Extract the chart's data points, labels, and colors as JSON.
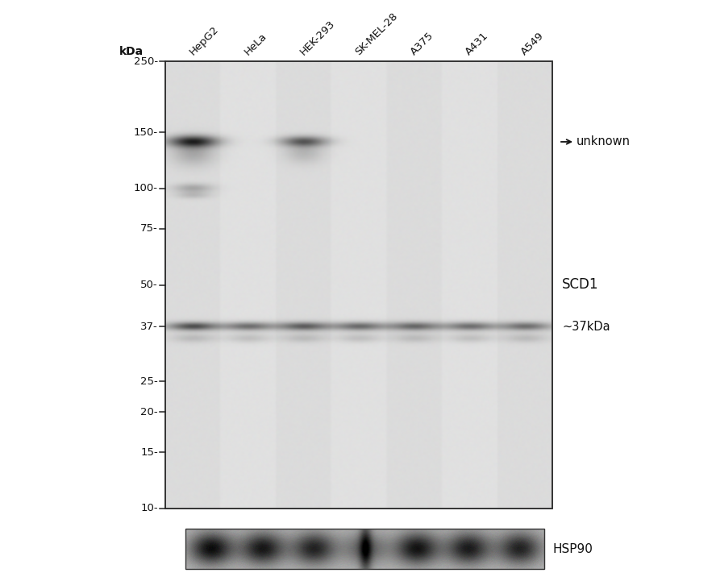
{
  "background_color": "#ffffff",
  "fig_width": 8.88,
  "fig_height": 7.11,
  "lanes": [
    "HepG2",
    "HeLa",
    "HEK-293",
    "SK-MEL-28",
    "A375",
    "A431",
    "A549"
  ],
  "kda_label": "kDa",
  "mw_markers": [
    250,
    150,
    100,
    75,
    50,
    37,
    25,
    20,
    15,
    10
  ],
  "right_labels": [
    {
      "text": "←unknown",
      "kda": 140,
      "fontsize": 10.5
    },
    {
      "text": "SCD1",
      "kda": 50,
      "fontsize": 12
    },
    {
      "text": "~37kDa",
      "kda": 37,
      "fontsize": 10.5
    }
  ],
  "hsp90_label": "HSP90",
  "blot_bg_color": "#d4d4d4",
  "blot_edge_color": "#222222",
  "band_dark": "#111111",
  "band_medium": "#444444",
  "band_light": "#888888"
}
